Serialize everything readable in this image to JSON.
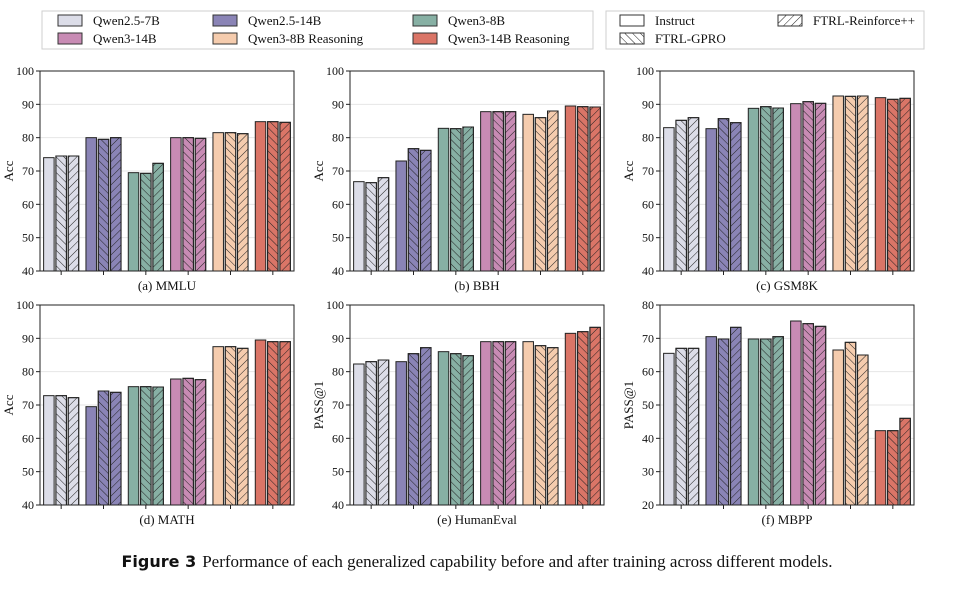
{
  "legend": {
    "models": [
      {
        "label": "Qwen2.5-7B",
        "color": "#dcdde8"
      },
      {
        "label": "Qwen2.5-14B",
        "color": "#8a84b6"
      },
      {
        "label": "Qwen3-8B",
        "color": "#87b0a4"
      },
      {
        "label": "Qwen3-14B",
        "color": "#c88bb4"
      },
      {
        "label": "Qwen3-8B Reasoning",
        "color": "#f5ccae"
      },
      {
        "label": "Qwen3-14B Reasoning",
        "color": "#da7567"
      }
    ],
    "methods": [
      {
        "label": "Instruct",
        "pattern": "none"
      },
      {
        "label": "FTRL-GPRO",
        "pattern": "backslash"
      },
      {
        "label": "FTRL-Reinforce++",
        "pattern": "slash"
      }
    ]
  },
  "caption": {
    "lead": "Figure 3",
    "text": "Performance of each generalized capability before and after training across different models."
  },
  "chart_data": [
    {
      "type": "bar",
      "title": "(a) MMLU",
      "ylabel": "Acc",
      "ylim": [
        40,
        100
      ],
      "ticks": [
        40,
        50,
        60,
        70,
        80,
        90,
        100
      ],
      "categories": [
        "Qwen2.5-7B",
        "Qwen2.5-14B",
        "Qwen3-8B",
        "Qwen3-14B",
        "Qwen3-8B Reasoning",
        "Qwen3-14B Reasoning"
      ],
      "series": [
        {
          "name": "Instruct",
          "values": [
            74,
            80,
            69.5,
            80,
            81.5,
            84.8
          ]
        },
        {
          "name": "FTRL-GPRO",
          "values": [
            74.5,
            79.5,
            69.3,
            80,
            81.5,
            84.8
          ]
        },
        {
          "name": "FTRL-Reinforce++",
          "values": [
            74.5,
            80,
            72.3,
            79.8,
            81.2,
            84.6
          ]
        }
      ]
    },
    {
      "type": "bar",
      "title": "(b) BBH",
      "ylabel": "Acc",
      "ylim": [
        40,
        100
      ],
      "ticks": [
        40,
        50,
        60,
        70,
        80,
        90,
        100
      ],
      "categories": [
        "Qwen2.5-7B",
        "Qwen2.5-14B",
        "Qwen3-8B",
        "Qwen3-14B",
        "Qwen3-8B Reasoning",
        "Qwen3-14B Reasoning"
      ],
      "series": [
        {
          "name": "Instruct",
          "values": [
            66.8,
            73,
            82.8,
            87.8,
            87,
            89.5
          ]
        },
        {
          "name": "FTRL-GPRO",
          "values": [
            66.5,
            76.7,
            82.7,
            87.8,
            86,
            89.3
          ]
        },
        {
          "name": "FTRL-Reinforce++",
          "values": [
            68,
            76.2,
            83.2,
            87.8,
            88,
            89.2
          ]
        }
      ]
    },
    {
      "type": "bar",
      "title": "(c) GSM8K",
      "ylabel": "Acc",
      "ylim": [
        40,
        100
      ],
      "ticks": [
        40,
        50,
        60,
        70,
        80,
        90,
        100
      ],
      "categories": [
        "Qwen2.5-7B",
        "Qwen2.5-14B",
        "Qwen3-8B",
        "Qwen3-14B",
        "Qwen3-8B Reasoning",
        "Qwen3-14B Reasoning"
      ],
      "series": [
        {
          "name": "Instruct",
          "values": [
            83,
            82.7,
            88.8,
            90.2,
            92.5,
            92
          ]
        },
        {
          "name": "FTRL-GPRO",
          "values": [
            85.2,
            85.7,
            89.3,
            90.8,
            92.4,
            91.5
          ]
        },
        {
          "name": "FTRL-Reinforce++",
          "values": [
            86,
            84.5,
            88.9,
            90.3,
            92.5,
            91.8
          ]
        }
      ]
    },
    {
      "type": "bar",
      "title": "(d) MATH",
      "ylabel": "Acc",
      "ylim": [
        40,
        100
      ],
      "ticks": [
        40,
        50,
        60,
        70,
        80,
        90,
        100
      ],
      "categories": [
        "Qwen2.5-7B",
        "Qwen2.5-14B",
        "Qwen3-8B",
        "Qwen3-14B",
        "Qwen3-8B Reasoning",
        "Qwen3-14B Reasoning"
      ],
      "series": [
        {
          "name": "Instruct",
          "values": [
            72.8,
            69.5,
            75.5,
            77.8,
            87.5,
            89.5
          ]
        },
        {
          "name": "FTRL-GPRO",
          "values": [
            72.8,
            74.2,
            75.5,
            78,
            87.5,
            89
          ]
        },
        {
          "name": "FTRL-Reinforce++",
          "values": [
            72.2,
            73.8,
            75.4,
            77.6,
            87,
            89
          ]
        }
      ]
    },
    {
      "type": "bar",
      "title": "(e) HumanEval",
      "ylabel": "PASS@1",
      "ylim": [
        40,
        100
      ],
      "ticks": [
        40,
        50,
        60,
        70,
        80,
        90,
        100
      ],
      "categories": [
        "Qwen2.5-7B",
        "Qwen2.5-14B",
        "Qwen3-8B",
        "Qwen3-14B",
        "Qwen3-8B Reasoning",
        "Qwen3-14B Reasoning"
      ],
      "series": [
        {
          "name": "Instruct",
          "values": [
            82.3,
            83,
            86,
            89,
            89,
            91.5
          ]
        },
        {
          "name": "FTRL-GPRO",
          "values": [
            83,
            85.4,
            85.4,
            89,
            87.8,
            92
          ]
        },
        {
          "name": "FTRL-Reinforce++",
          "values": [
            83.5,
            87.2,
            84.8,
            89,
            87.2,
            93.3
          ]
        }
      ]
    },
    {
      "type": "bar",
      "title": "(f) MBPP",
      "ylabel": "PASS@1",
      "ylim": [
        20,
        80
      ],
      "ticks": [
        20,
        30,
        40,
        50,
        60,
        70,
        80
      ],
      "categories": [
        "Qwen2.5-7B",
        "Qwen2.5-14B",
        "Qwen3-8B",
        "Qwen3-14B",
        "Qwen3-8B Reasoning",
        "Qwen3-14B Reasoning"
      ],
      "series": [
        {
          "name": "Instruct",
          "values": [
            65.5,
            70.5,
            69.8,
            75.2,
            66.5,
            42.3
          ]
        },
        {
          "name": "FTRL-GPRO",
          "values": [
            67,
            69.8,
            69.8,
            74.4,
            68.8,
            42.3
          ]
        },
        {
          "name": "FTRL-Reinforce++",
          "values": [
            67,
            73.3,
            70.5,
            73.6,
            65,
            46
          ]
        }
      ]
    }
  ]
}
